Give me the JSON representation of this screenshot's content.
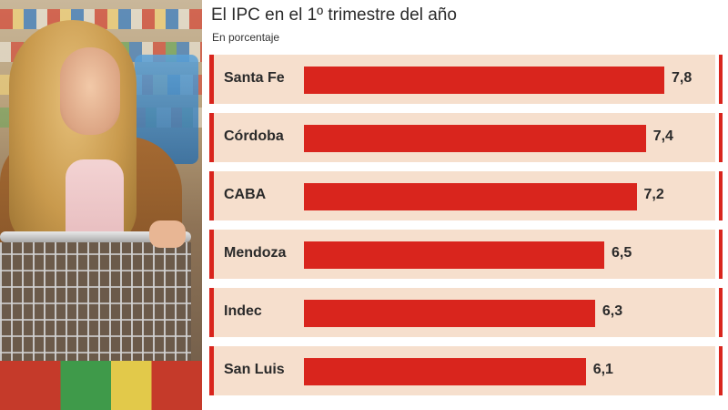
{
  "chart_data": {
    "type": "bar",
    "orientation": "horizontal",
    "title": "El IPC en el 1º trimestre del año",
    "subtitle": "En porcentaje",
    "categories": [
      "Santa Fe",
      "Córdoba",
      "CABA",
      "Mendoza",
      "Indec",
      "San Luis"
    ],
    "values": [
      7.8,
      7.4,
      7.2,
      6.5,
      6.3,
      6.1
    ],
    "value_labels": [
      "7,8",
      "7,4",
      "7,2",
      "6,5",
      "6,3",
      "6,1"
    ],
    "xlim": [
      0,
      7.8
    ],
    "grid": false,
    "legend": "none",
    "colors": {
      "bar": "#d9251d",
      "row_background": "#f6dfcd"
    }
  },
  "photo": {
    "subject": "woman-with-shopping-cart"
  }
}
